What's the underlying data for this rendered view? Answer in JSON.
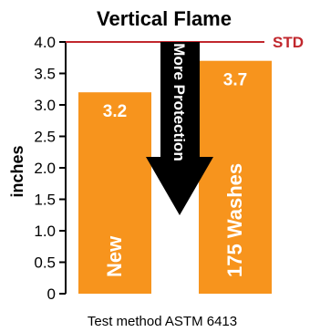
{
  "chart_data": {
    "type": "bar",
    "title": "Vertical Flame",
    "ylabel": "inches",
    "footnote": "Test method ASTM 6413",
    "ylim": [
      0,
      4.0
    ],
    "yticks": [
      "0",
      "0.5",
      "1.0",
      "1.5",
      "2.0",
      "2.5",
      "3.0",
      "3.5",
      "4.0"
    ],
    "categories": [
      "New",
      "175 Washes"
    ],
    "values": [
      3.2,
      3.7
    ],
    "value_labels": [
      "3.2",
      "3.7"
    ],
    "reference_line": {
      "label": "STD",
      "value": 4.0
    },
    "arrow_label": "More Protection",
    "grid": false,
    "colors": {
      "bar": "#f7941d",
      "std": "#c1272d",
      "arrow": "#000000",
      "text": "#000000",
      "bar_text": "#ffffff"
    }
  }
}
